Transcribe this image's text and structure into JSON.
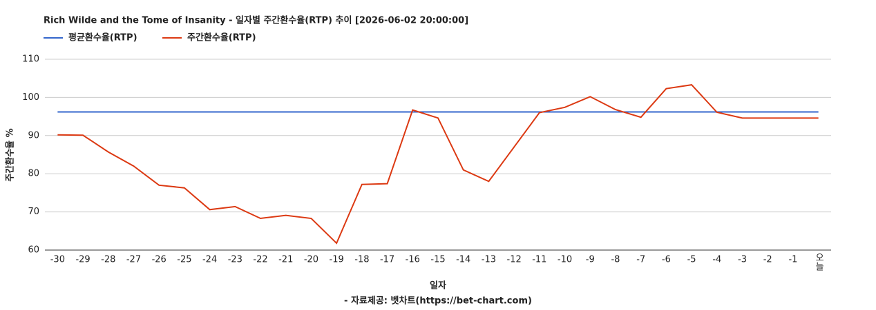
{
  "chart_data": {
    "type": "line",
    "title": "Rich Wilde and the Tome of Insanity - 일자별 주간환수율(RTP) 추이 [2026-06-02 20:00:00]",
    "x_label": "일자",
    "y_label": "주간환수율 %",
    "source": "- 자료제공: 벳차트(https://bet-chart.com)",
    "categories": [
      "-30",
      "-29",
      "-28",
      "-27",
      "-26",
      "-25",
      "-24",
      "-23",
      "-22",
      "-21",
      "-20",
      "-19",
      "-18",
      "-17",
      "-16",
      "-15",
      "-14",
      "-13",
      "-12",
      "-11",
      "-10",
      "-9",
      "-8",
      "-7",
      "-6",
      "-5",
      "-4",
      "-3",
      "-2",
      "-1",
      "오늘"
    ],
    "series": [
      {
        "name": "평균환수율(RTP)",
        "color": "#3366cc",
        "values": [
          96.2,
          96.2,
          96.2,
          96.2,
          96.2,
          96.2,
          96.2,
          96.2,
          96.2,
          96.2,
          96.2,
          96.2,
          96.2,
          96.2,
          96.2,
          96.2,
          96.2,
          96.2,
          96.2,
          96.2,
          96.2,
          96.2,
          96.2,
          96.2,
          96.2,
          96.2,
          96.2,
          96.2,
          96.2,
          96.2,
          96.2
        ]
      },
      {
        "name": "주간환수율(RTP)",
        "color": "#dc3912",
        "values": [
          90.2,
          90.1,
          85.7,
          82.0,
          77.0,
          76.3,
          70.6,
          71.4,
          68.3,
          69.1,
          68.3,
          61.8,
          77.2,
          77.4,
          96.7,
          94.6,
          81.0,
          78.0,
          87.0,
          96.0,
          97.4,
          100.2,
          96.8,
          94.8,
          102.3,
          103.3,
          96.1,
          94.6,
          94.6,
          94.6,
          94.6
        ]
      }
    ],
    "ylim": [
      60,
      110
    ],
    "yticks": [
      60,
      70,
      80,
      90,
      100,
      110
    ],
    "grid": true,
    "legend": "top-left"
  }
}
